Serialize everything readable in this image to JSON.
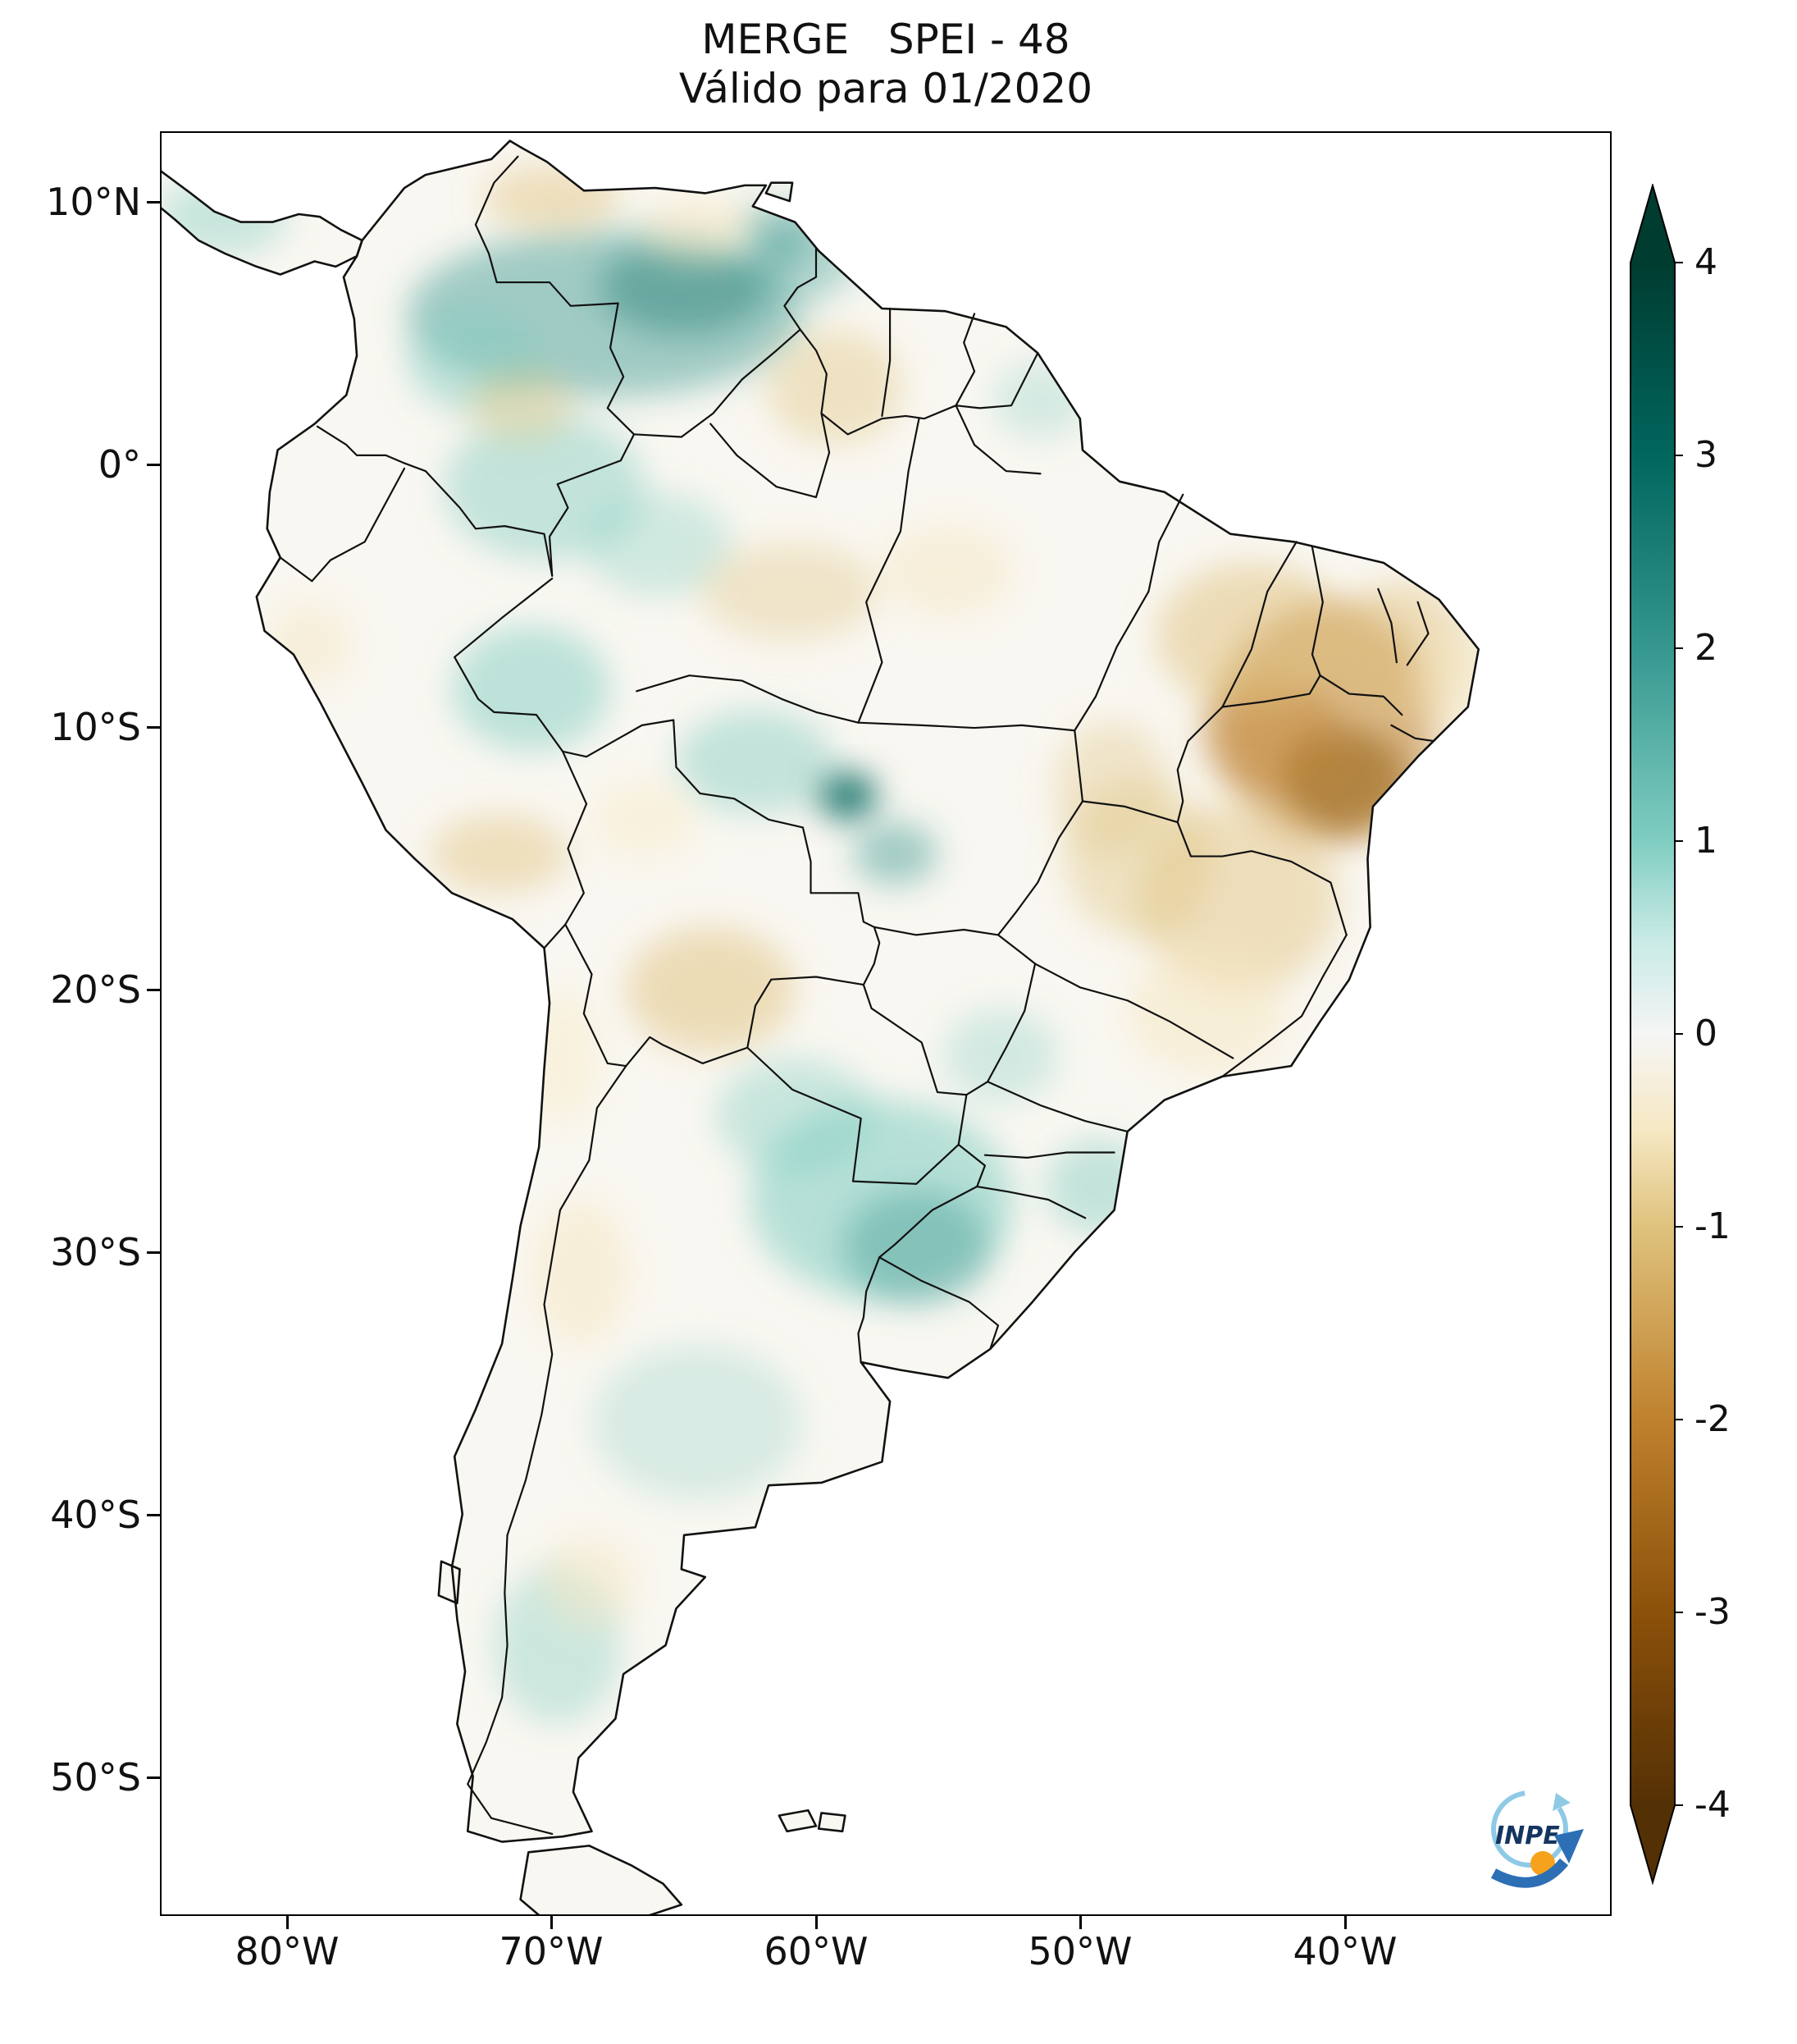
{
  "figure": {
    "title_line1": "MERGE   SPEI - 48",
    "title_line2": "Válido para 01/2020"
  },
  "axes": {
    "y_tick_labels": [
      "10°N",
      "0°",
      "10°S",
      "20°S",
      "30°S",
      "40°S",
      "50°S"
    ],
    "x_tick_labels": [
      "80°W",
      "70°W",
      "60°W",
      "50°W",
      "40°W"
    ]
  },
  "colorbar": {
    "tick_labels": [
      "4",
      "3",
      "2",
      "1",
      "0",
      "-1",
      "-2",
      "-3",
      "-4"
    ],
    "range": [
      -4,
      4
    ],
    "extend": "both",
    "colormap": "BrBG",
    "colors": {
      "pos4": "#003c30",
      "pos3": "#01665e",
      "pos2": "#35978f",
      "pos1": "#80cdc1",
      "pos_half": "#c7eae5",
      "zero": "#f5f5f5",
      "neg_half": "#f6e8c3",
      "neg1": "#dfc27d",
      "neg2": "#bf812d",
      "neg3": "#8c510a",
      "neg4": "#543005"
    }
  },
  "logo": {
    "name": "INPE"
  },
  "chart_data": {
    "type": "heatmap",
    "title": "MERGE SPEI - 48",
    "subtitle": "Válido para 01/2020",
    "product": "MERGE",
    "index": "SPEI-48",
    "valid_for": "01/2020",
    "colormap": "BrBG (brown = drought, green = wet)",
    "colorbar_ticks": [
      4,
      3,
      2,
      1,
      0,
      -1,
      -2,
      -3,
      -4
    ],
    "colorbar_range": [
      -4,
      4
    ],
    "x_axis": {
      "tick_labels": [
        "80°W",
        "70°W",
        "60°W",
        "50°W",
        "40°W"
      ],
      "approx_range_deg_west": [
        85,
        30
      ]
    },
    "y_axis": {
      "tick_labels": [
        "10°N",
        "0°",
        "10°S",
        "20°S",
        "30°S",
        "40°S",
        "50°S"
      ],
      "approx_range_deg_lat": [
        12.7,
        -55.3
      ]
    },
    "region_readings_estimated": [
      {
        "region": "Southern Venezuela / Guiana Highlands",
        "spei_48": 2.0
      },
      {
        "region": "Eastern Colombia / upper Rio Negro",
        "spei_48": 1.5
      },
      {
        "region": "Northwestern Venezuela (Maracaibo area)",
        "spei_48": -1.0
      },
      {
        "region": "Guyana / Roraima",
        "spei_48": -1.0
      },
      {
        "region": "Central Amazonas (Brazil)",
        "spei_48": -0.8
      },
      {
        "region": "Western Amazon (Acre / SE Peru)",
        "spei_48": 1.0
      },
      {
        "region": "Northern Mato Grosso (localized maximum)",
        "spei_48": 3.0
      },
      {
        "region": "Northeast Brazil semiarid interior (Bahia / Pernambuco)",
        "spei_48": -2.5
      },
      {
        "region": "Maranhão / Piauí",
        "spei_48": -1.5
      },
      {
        "region": "Central-eastern Brazil (Goiás / Minas Gerais)",
        "spei_48": -1.2
      },
      {
        "region": "Southeastern Bolivia / Chaco",
        "spei_48": -1.3
      },
      {
        "region": "Southern Peru highlands",
        "spei_48": -1.0
      },
      {
        "region": "Paraguay / southern Brazil / NE Argentina",
        "spei_48": 1.5
      },
      {
        "region": "Uruguay",
        "spei_48": 0.5
      },
      {
        "region": "Central Argentina (Pampas)",
        "spei_48": 0.5
      },
      {
        "region": "Cuyo / Andean foothills (Argentina)",
        "spei_48": -0.8
      },
      {
        "region": "Central Patagonia",
        "spei_48": 0.8
      },
      {
        "region": "Tierra del Fuego",
        "spei_48": 0.0
      }
    ]
  }
}
